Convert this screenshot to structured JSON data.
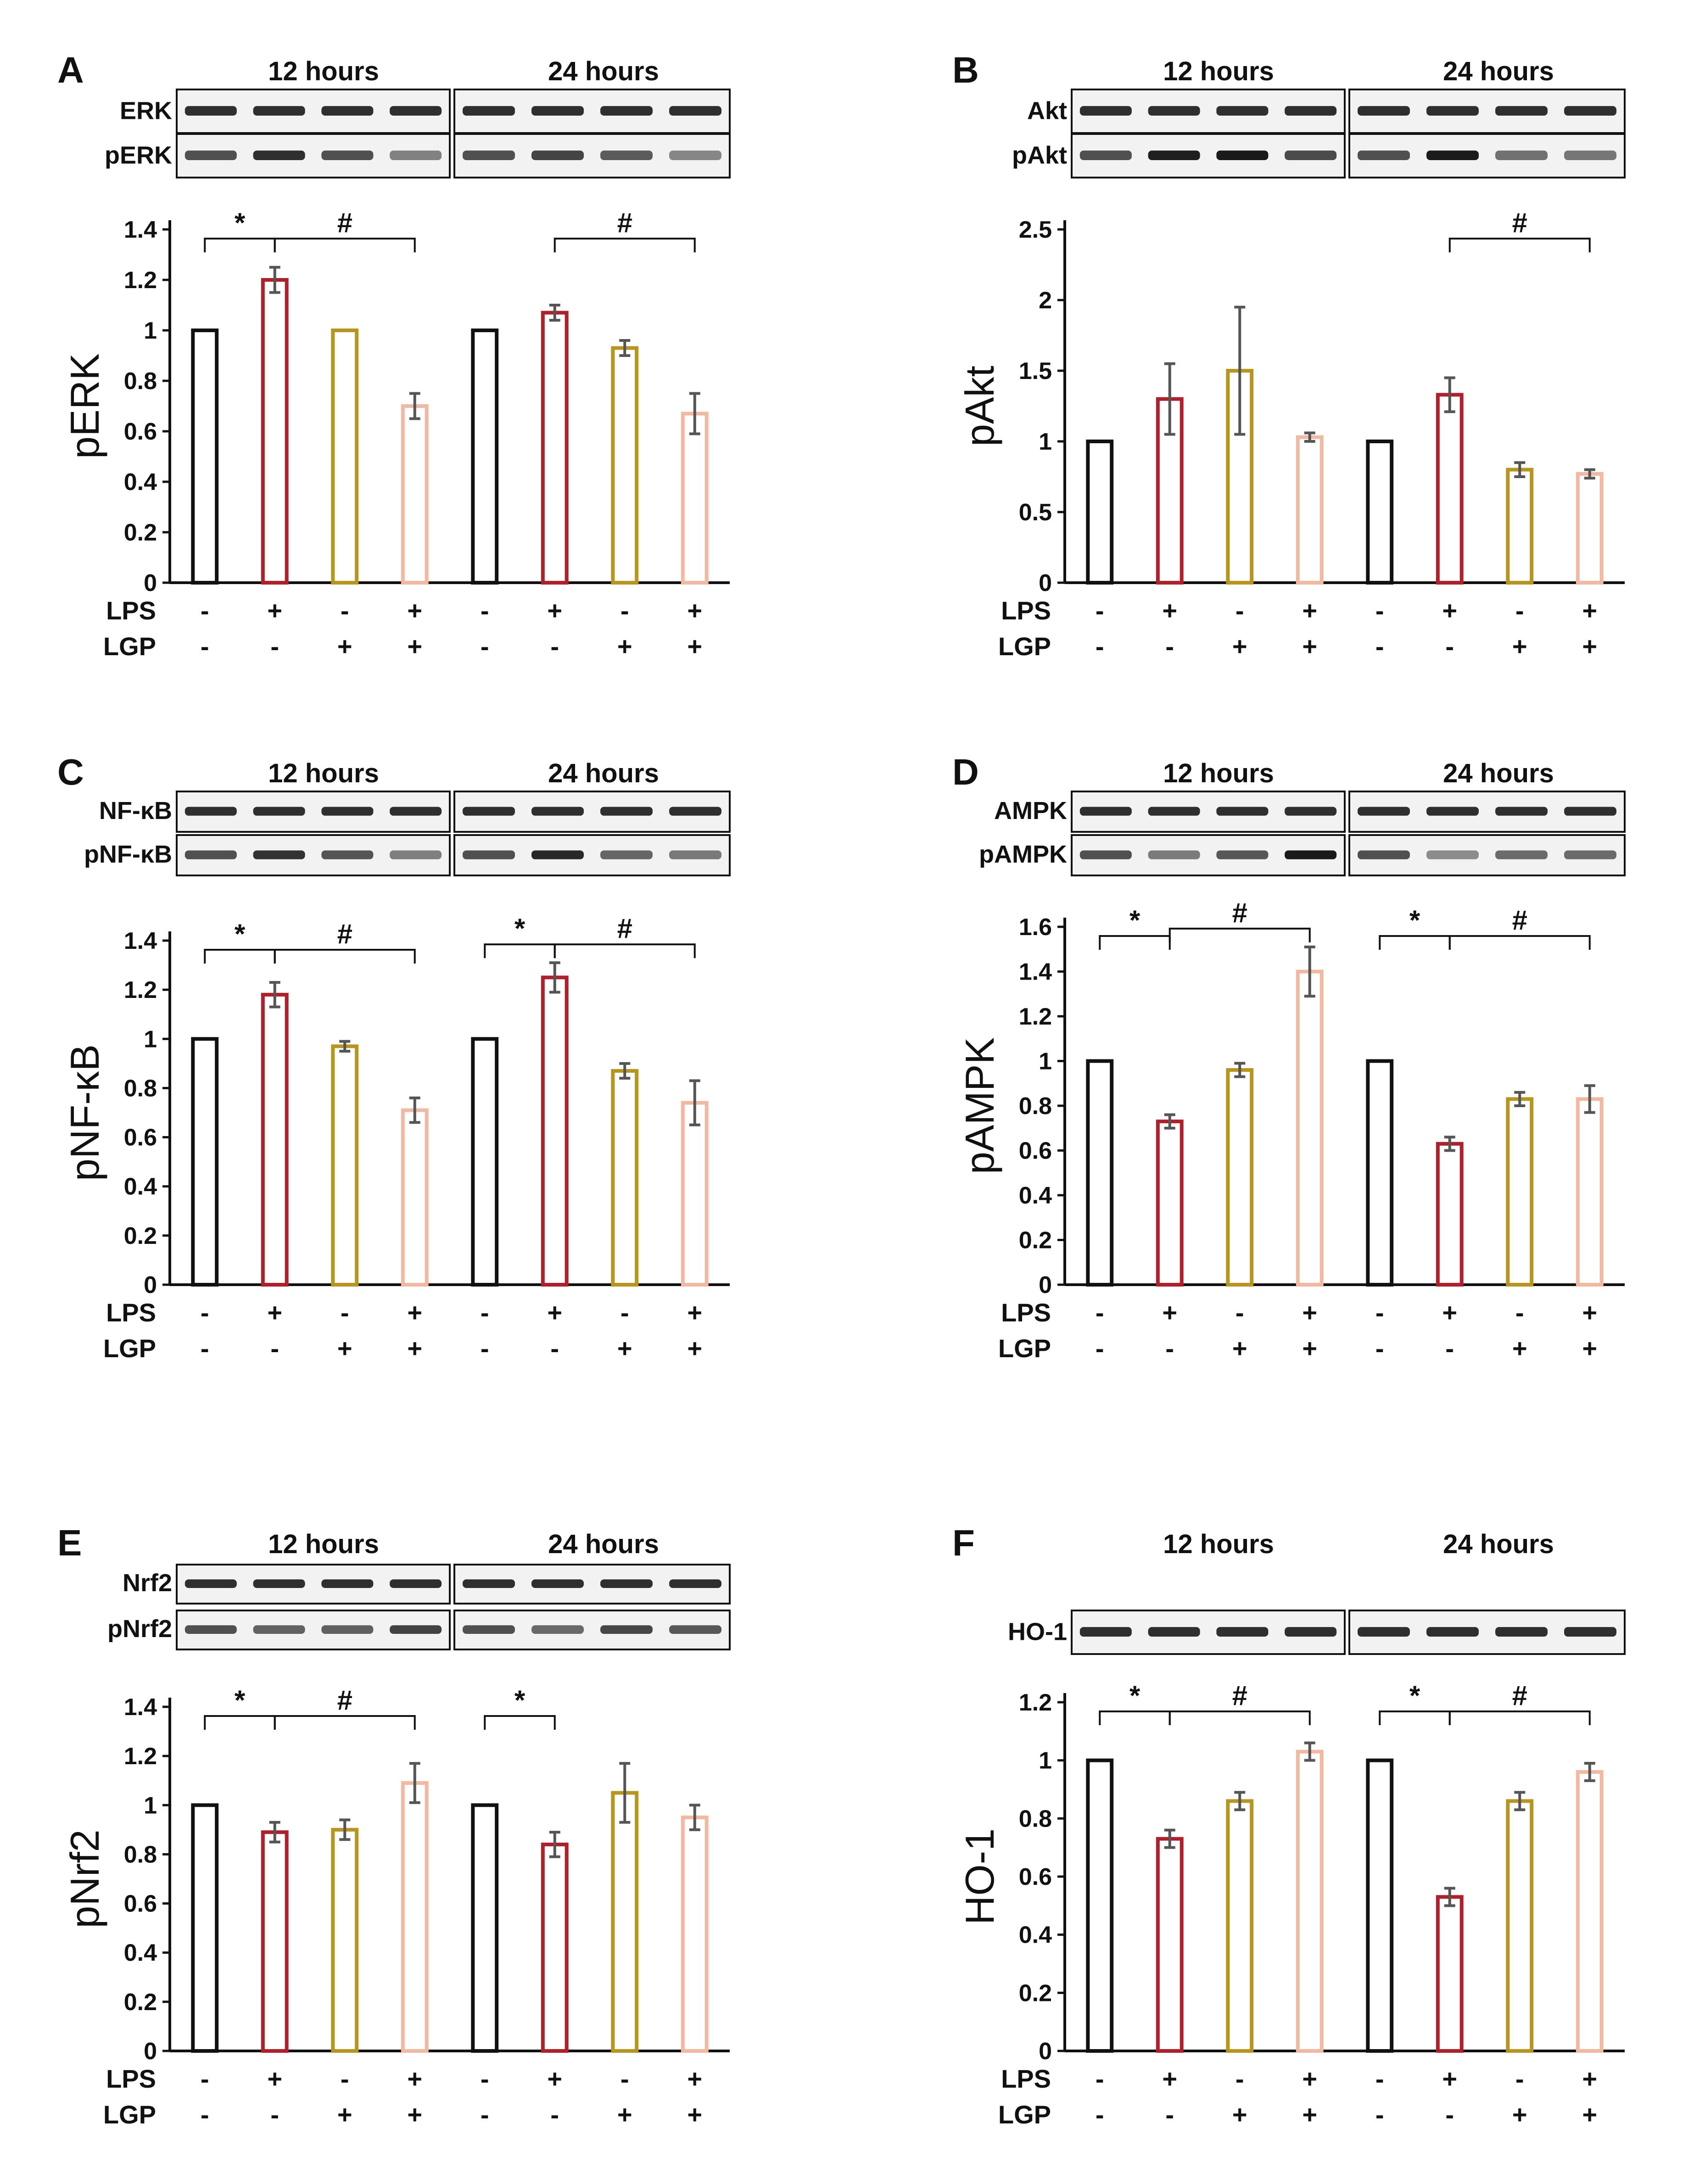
{
  "colors": {
    "control": "#111111",
    "lps": "#B0202A",
    "lgp": "#B8961E",
    "lps_lgp": "#F2B9A0",
    "error_bar": "#555555",
    "blot_band": "#1a1a1a",
    "blot_bg": "#f2f2f2"
  },
  "row_labels": [
    "LPS",
    "LGP"
  ],
  "row_signs": {
    "LPS": [
      "-",
      "+",
      "-",
      "+",
      "-",
      "+",
      "-",
      "+"
    ],
    "LGP": [
      "-",
      "-",
      "+",
      "+",
      "-",
      "-",
      "+",
      "+"
    ]
  },
  "chart_data": [
    {
      "type": "bar",
      "panel_label": "A",
      "time_labels": [
        "12 hours",
        "24 hours"
      ],
      "blot_labels": [
        "ERK",
        "pERK"
      ],
      "ylabel": "pERK",
      "ylim": [
        0,
        1.4
      ],
      "yticks": [
        "0",
        "0.2",
        "0.4",
        "0.6",
        "0.8",
        "1",
        "1.2",
        "1.4"
      ],
      "values": [
        1.0,
        1.2,
        1.0,
        0.7,
        1.0,
        1.07,
        0.93,
        0.67
      ],
      "errors": [
        0,
        0.05,
        0,
        0.05,
        0,
        0.03,
        0.03,
        0.08
      ],
      "annotations": [
        {
          "symbol": "*",
          "from": 0,
          "to": 1
        },
        {
          "symbol": "#",
          "from": 1,
          "to": 3
        },
        {
          "symbol": "#",
          "from": 5,
          "to": 7
        }
      ]
    },
    {
      "type": "bar",
      "panel_label": "B",
      "time_labels": [
        "12 hours",
        "24 hours"
      ],
      "blot_labels": [
        "Akt",
        "pAkt"
      ],
      "ylabel": "pAkt",
      "ylim": [
        0,
        2.5
      ],
      "yticks": [
        "0",
        "0.5",
        "1",
        "1.5",
        "2",
        "2.5"
      ],
      "values": [
        1.0,
        1.3,
        1.5,
        1.03,
        1.0,
        1.33,
        0.8,
        0.77
      ],
      "errors": [
        0,
        0.25,
        0.45,
        0.03,
        0,
        0.12,
        0.05,
        0.03
      ],
      "annotations": [
        {
          "symbol": "#",
          "from": 5,
          "to": 7
        }
      ]
    },
    {
      "type": "bar",
      "panel_label": "C",
      "time_labels": [
        "12 hours",
        "24 hours"
      ],
      "blot_labels": [
        "NF-κB",
        "pNF-κB"
      ],
      "ylabel": "pNF-κB",
      "ylim": [
        0,
        1.4
      ],
      "yticks": [
        "0",
        "0.2",
        "0.4",
        "0.6",
        "0.8",
        "1",
        "1.2",
        "1.4"
      ],
      "values": [
        1.0,
        1.18,
        0.97,
        0.71,
        1.0,
        1.25,
        0.87,
        0.74
      ],
      "errors": [
        0,
        0.05,
        0.02,
        0.05,
        0,
        0.06,
        0.03,
        0.09
      ],
      "annotations": [
        {
          "symbol": "*",
          "from": 0,
          "to": 1
        },
        {
          "symbol": "#",
          "from": 1,
          "to": 3
        },
        {
          "symbol": "*",
          "from": 4,
          "to": 5
        },
        {
          "symbol": "#",
          "from": 5,
          "to": 7
        }
      ]
    },
    {
      "type": "bar",
      "panel_label": "D",
      "time_labels": [
        "12 hours",
        "24 hours"
      ],
      "blot_labels": [
        "AMPK",
        "pAMPK"
      ],
      "ylabel": "pAMPK",
      "ylim": [
        0,
        1.6
      ],
      "yticks": [
        "0",
        "0.2",
        "0.4",
        "0.6",
        "0.8",
        "1",
        "1.2",
        "1.4",
        "1.6"
      ],
      "values": [
        1.0,
        0.73,
        0.96,
        1.4,
        1.0,
        0.63,
        0.83,
        0.83
      ],
      "errors": [
        0,
        0.03,
        0.03,
        0.11,
        0,
        0.03,
        0.03,
        0.06
      ],
      "annotations": [
        {
          "symbol": "*",
          "from": 0,
          "to": 1
        },
        {
          "symbol": "#",
          "from": 1,
          "to": 3
        },
        {
          "symbol": "*",
          "from": 4,
          "to": 5
        },
        {
          "symbol": "#",
          "from": 5,
          "to": 7
        }
      ]
    },
    {
      "type": "bar",
      "panel_label": "E",
      "time_labels": [
        "12 hours",
        "24 hours"
      ],
      "blot_labels": [
        "Nrf2",
        "pNrf2"
      ],
      "ylabel": "pNrf2",
      "ylim": [
        0,
        1.4
      ],
      "yticks": [
        "0",
        "0.2",
        "0.4",
        "0.6",
        "0.8",
        "1",
        "1.2",
        "1.4"
      ],
      "values": [
        1.0,
        0.89,
        0.9,
        1.09,
        1.0,
        0.84,
        1.05,
        0.95
      ],
      "errors": [
        0,
        0.04,
        0.04,
        0.08,
        0,
        0.05,
        0.12,
        0.05
      ],
      "annotations": [
        {
          "symbol": "*",
          "from": 0,
          "to": 1
        },
        {
          "symbol": "#",
          "from": 1,
          "to": 3
        },
        {
          "symbol": "*",
          "from": 4,
          "to": 5
        }
      ]
    },
    {
      "type": "bar",
      "panel_label": "F",
      "time_labels": [
        "12 hours",
        "24 hours"
      ],
      "blot_labels": [
        "HO-1"
      ],
      "ylabel": "HO-1",
      "ylim": [
        0,
        1.2
      ],
      "yticks": [
        "0",
        "0.2",
        "0.4",
        "0.6",
        "0.8",
        "1",
        "1.2"
      ],
      "values": [
        1.0,
        0.73,
        0.86,
        1.03,
        1.0,
        0.53,
        0.86,
        0.96
      ],
      "errors": [
        0,
        0.03,
        0.03,
        0.03,
        0,
        0.03,
        0.03,
        0.03
      ],
      "annotations": [
        {
          "symbol": "*",
          "from": 0,
          "to": 1
        },
        {
          "symbol": "#",
          "from": 1,
          "to": 3
        },
        {
          "symbol": "*",
          "from": 4,
          "to": 5
        },
        {
          "symbol": "#",
          "from": 5,
          "to": 7
        }
      ]
    }
  ]
}
